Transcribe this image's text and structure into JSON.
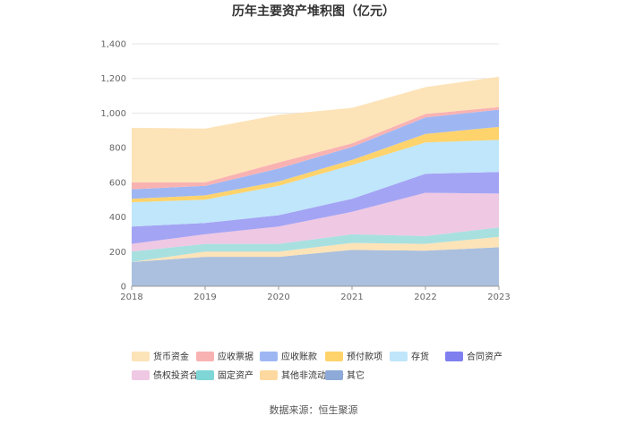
{
  "chart_data": {
    "type": "area",
    "stacked": true,
    "title": "历年主要资产堆积图（亿元）",
    "x": [
      "2018",
      "2019",
      "2020",
      "2021",
      "2022",
      "2023"
    ],
    "ylim": [
      0,
      1400
    ],
    "yticks": [
      "0",
      "200",
      "400",
      "600",
      "800",
      "1,000",
      "1,200",
      "1,400"
    ],
    "ytick_values": [
      0,
      200,
      400,
      600,
      800,
      1000,
      1200,
      1400
    ],
    "grid": true,
    "legend_position": "bottom",
    "series": [
      {
        "name": "其它",
        "color": "#aac0de",
        "values": [
          140,
          170,
          170,
          210,
          205,
          225
        ]
      },
      {
        "name": "其他非流动资产",
        "color": "#fde3b8",
        "values": [
          0,
          30,
          30,
          40,
          40,
          60
        ]
      },
      {
        "name": "固定资产",
        "color": "#a8e0e0",
        "values": [
          60,
          45,
          45,
          50,
          45,
          55
        ]
      },
      {
        "name": "债权投资合计",
        "color": "#efc8e3",
        "values": [
          45,
          55,
          100,
          130,
          250,
          195
        ]
      },
      {
        "name": "合同资产",
        "color": "#a4a4f4",
        "values": [
          100,
          65,
          65,
          75,
          110,
          125
        ]
      },
      {
        "name": "存货",
        "color": "#bfe6fb",
        "values": [
          140,
          135,
          170,
          195,
          180,
          185
        ]
      },
      {
        "name": "预付款项",
        "color": "#ffd36b",
        "values": [
          20,
          25,
          25,
          30,
          50,
          75
        ]
      },
      {
        "name": "应收账款",
        "color": "#9eb7f3",
        "values": [
          55,
          55,
          75,
          75,
          95,
          100
        ]
      },
      {
        "name": "应收票据",
        "color": "#f9b2b2",
        "values": [
          40,
          20,
          35,
          20,
          20,
          15
        ]
      },
      {
        "name": "货币资金",
        "color": "#fde3b8",
        "values": [
          315,
          310,
          275,
          205,
          155,
          175
        ]
      }
    ],
    "legend": [
      {
        "name": "货币资金",
        "color": "#fde3b8"
      },
      {
        "name": "应收票据",
        "color": "#f9b2b2"
      },
      {
        "name": "应收账款",
        "color": "#9eb7f3"
      },
      {
        "name": "预付款项",
        "color": "#ffd36b"
      },
      {
        "name": "存货",
        "color": "#bfe6fb"
      },
      {
        "name": "合同资产",
        "color": "#7f7fef"
      },
      {
        "name": "债权投资合计",
        "color": "#efc8e3"
      },
      {
        "name": "固定资产",
        "color": "#7fd6d6"
      },
      {
        "name": "其他非流动资产",
        "color": "#fdd9a0"
      },
      {
        "name": "其它",
        "color": "#8eaad8"
      }
    ]
  },
  "source": "数据来源：恒生聚源"
}
